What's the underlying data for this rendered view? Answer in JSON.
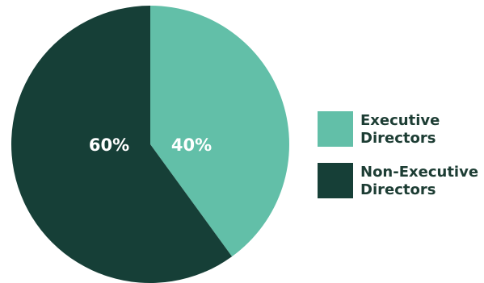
{
  "chart_data": {
    "type": "pie",
    "title": "",
    "slices": [
      {
        "name": "Executive Directors",
        "legend_label": "Executive Directors",
        "value": 40,
        "label": "40%",
        "color": "#62bfa8"
      },
      {
        "name": "Non-Executive Directors",
        "legend_label": "Non-Executive Directors",
        "value": 60,
        "label": "60%",
        "color": "#163f37"
      }
    ],
    "legend_placement": "right",
    "start_angle_deg": 0,
    "direction": "clockwise"
  }
}
